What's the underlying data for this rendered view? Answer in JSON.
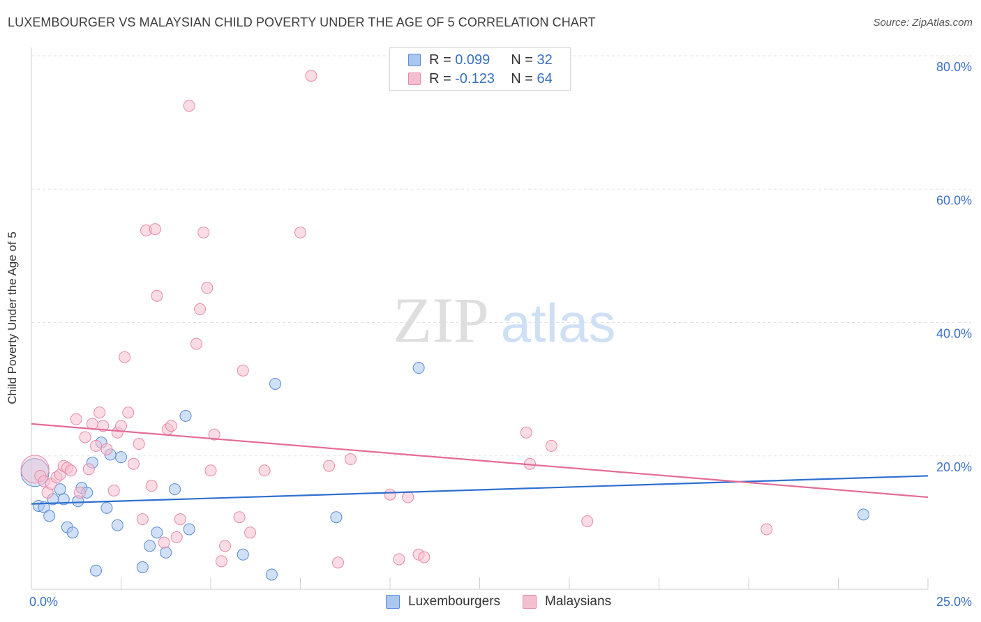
{
  "header": {
    "title": "LUXEMBOURGER VS MALAYSIAN CHILD POVERTY UNDER THE AGE OF 5 CORRELATION CHART",
    "source": "Source: ZipAtlas.com"
  },
  "watermark": {
    "zip": "ZIP",
    "atlas": "atlas"
  },
  "legend": {
    "items": [
      {
        "r_label": "R = ",
        "r_value": "0.099",
        "n_label": "N = ",
        "n_value": "32"
      },
      {
        "r_label": "R = ",
        "r_value": "-0.123",
        "n_label": "N = ",
        "n_value": "64"
      }
    ]
  },
  "colors": {
    "blue_fill": "#a9c7ef",
    "blue_stroke": "#5a8ad6",
    "blue_line": "#2f6fd0",
    "pink_fill": "#f6bfd0",
    "pink_stroke": "#e68aa8",
    "pink_line": "#e46b96",
    "tick_text": "#3a6fc4",
    "grid": "#e2e2e2"
  },
  "chart_data": {
    "type": "scatter",
    "title": "LUXEMBOURGER VS MALAYSIAN CHILD POVERTY UNDER THE AGE OF 5 CORRELATION CHART",
    "xlabel": "",
    "ylabel": "Child Poverty Under the Age of 5",
    "xlim": [
      0,
      25
    ],
    "ylim": [
      0,
      80
    ],
    "x_tick_labels": [
      {
        "value": 0,
        "label": "0.0%"
      },
      {
        "value": 25,
        "label": "25.0%"
      }
    ],
    "y_tick_labels": [
      {
        "value": 20,
        "label": "20.0%"
      },
      {
        "value": 40,
        "label": "40.0%"
      },
      {
        "value": 60,
        "label": "60.0%"
      },
      {
        "value": 80,
        "label": "80.0%"
      }
    ],
    "grid": "horizontal dashed",
    "legend_position": "top-center",
    "series": [
      {
        "name": "Luxembourgers",
        "color": "#a9c7ef",
        "trend": {
          "x": [
            0,
            25
          ],
          "y": [
            12.8,
            17.0
          ]
        },
        "points": [
          {
            "x": 0.1,
            "y": 17.5,
            "big": true
          },
          {
            "x": 0.2,
            "y": 12.5
          },
          {
            "x": 0.35,
            "y": 12.3
          },
          {
            "x": 0.5,
            "y": 11.0
          },
          {
            "x": 0.6,
            "y": 13.5
          },
          {
            "x": 0.8,
            "y": 15.0
          },
          {
            "x": 0.9,
            "y": 13.5
          },
          {
            "x": 1.0,
            "y": 9.3
          },
          {
            "x": 1.15,
            "y": 8.5
          },
          {
            "x": 1.3,
            "y": 13.2
          },
          {
            "x": 1.4,
            "y": 15.2
          },
          {
            "x": 1.55,
            "y": 14.5
          },
          {
            "x": 1.7,
            "y": 19.0
          },
          {
            "x": 1.8,
            "y": 2.8
          },
          {
            "x": 1.95,
            "y": 22.0
          },
          {
            "x": 2.1,
            "y": 12.2
          },
          {
            "x": 2.2,
            "y": 20.2
          },
          {
            "x": 2.4,
            "y": 9.6
          },
          {
            "x": 2.5,
            "y": 19.8
          },
          {
            "x": 3.1,
            "y": 3.3
          },
          {
            "x": 3.3,
            "y": 6.5
          },
          {
            "x": 3.5,
            "y": 8.5
          },
          {
            "x": 3.75,
            "y": 5.5
          },
          {
            "x": 4.0,
            "y": 15.0
          },
          {
            "x": 4.3,
            "y": 26.0
          },
          {
            "x": 4.4,
            "y": 9.0
          },
          {
            "x": 5.9,
            "y": 5.2
          },
          {
            "x": 6.7,
            "y": 2.2
          },
          {
            "x": 6.8,
            "y": 30.8
          },
          {
            "x": 8.5,
            "y": 10.8
          },
          {
            "x": 10.8,
            "y": 33.2
          },
          {
            "x": 23.2,
            "y": 11.2
          }
        ]
      },
      {
        "name": "Malaysians",
        "color": "#f6bfd0",
        "trend": {
          "x": [
            0,
            25
          ],
          "y": [
            24.8,
            13.8
          ]
        },
        "points": [
          {
            "x": 0.1,
            "y": 18.0,
            "big": true
          },
          {
            "x": 0.25,
            "y": 17.0
          },
          {
            "x": 0.35,
            "y": 16.2
          },
          {
            "x": 0.45,
            "y": 14.5
          },
          {
            "x": 0.55,
            "y": 15.8
          },
          {
            "x": 0.7,
            "y": 16.8
          },
          {
            "x": 0.8,
            "y": 17.2
          },
          {
            "x": 0.9,
            "y": 18.5
          },
          {
            "x": 1.0,
            "y": 18.2
          },
          {
            "x": 1.1,
            "y": 17.8
          },
          {
            "x": 1.25,
            "y": 25.5
          },
          {
            "x": 1.35,
            "y": 14.5
          },
          {
            "x": 1.5,
            "y": 22.8
          },
          {
            "x": 1.6,
            "y": 18.0
          },
          {
            "x": 1.7,
            "y": 24.8
          },
          {
            "x": 1.8,
            "y": 21.5
          },
          {
            "x": 1.9,
            "y": 26.5
          },
          {
            "x": 2.0,
            "y": 24.5
          },
          {
            "x": 2.1,
            "y": 21.0
          },
          {
            "x": 2.3,
            "y": 14.8
          },
          {
            "x": 2.4,
            "y": 23.5
          },
          {
            "x": 2.5,
            "y": 24.5
          },
          {
            "x": 2.6,
            "y": 34.8
          },
          {
            "x": 2.7,
            "y": 26.5
          },
          {
            "x": 2.85,
            "y": 18.8
          },
          {
            "x": 3.0,
            "y": 21.8
          },
          {
            "x": 3.1,
            "y": 10.5
          },
          {
            "x": 3.2,
            "y": 53.8
          },
          {
            "x": 3.35,
            "y": 15.5
          },
          {
            "x": 3.45,
            "y": 54.0
          },
          {
            "x": 3.5,
            "y": 44.0
          },
          {
            "x": 3.7,
            "y": 7.0
          },
          {
            "x": 3.8,
            "y": 24.0
          },
          {
            "x": 3.9,
            "y": 24.5
          },
          {
            "x": 4.05,
            "y": 7.8
          },
          {
            "x": 4.15,
            "y": 10.5
          },
          {
            "x": 4.4,
            "y": 72.5
          },
          {
            "x": 4.6,
            "y": 36.8
          },
          {
            "x": 4.7,
            "y": 42.0
          },
          {
            "x": 4.8,
            "y": 53.5
          },
          {
            "x": 4.9,
            "y": 45.2
          },
          {
            "x": 5.0,
            "y": 17.8
          },
          {
            "x": 5.1,
            "y": 23.2
          },
          {
            "x": 5.3,
            "y": 4.2
          },
          {
            "x": 5.4,
            "y": 6.5
          },
          {
            "x": 5.8,
            "y": 10.8
          },
          {
            "x": 5.9,
            "y": 32.8
          },
          {
            "x": 6.1,
            "y": 8.5
          },
          {
            "x": 6.5,
            "y": 17.8
          },
          {
            "x": 7.5,
            "y": 53.5
          },
          {
            "x": 7.8,
            "y": 77.0
          },
          {
            "x": 8.3,
            "y": 18.5
          },
          {
            "x": 8.55,
            "y": 4.0
          },
          {
            "x": 8.9,
            "y": 19.5
          },
          {
            "x": 10.0,
            "y": 14.2
          },
          {
            "x": 10.25,
            "y": 4.5
          },
          {
            "x": 10.5,
            "y": 13.8
          },
          {
            "x": 10.8,
            "y": 5.2
          },
          {
            "x": 10.95,
            "y": 4.8
          },
          {
            "x": 13.8,
            "y": 23.5
          },
          {
            "x": 13.9,
            "y": 18.8
          },
          {
            "x": 14.5,
            "y": 21.5
          },
          {
            "x": 15.5,
            "y": 10.2
          },
          {
            "x": 20.5,
            "y": 9.0
          }
        ]
      }
    ]
  },
  "bottom_legend": {
    "items": [
      "Luxembourgers",
      "Malaysians"
    ]
  }
}
